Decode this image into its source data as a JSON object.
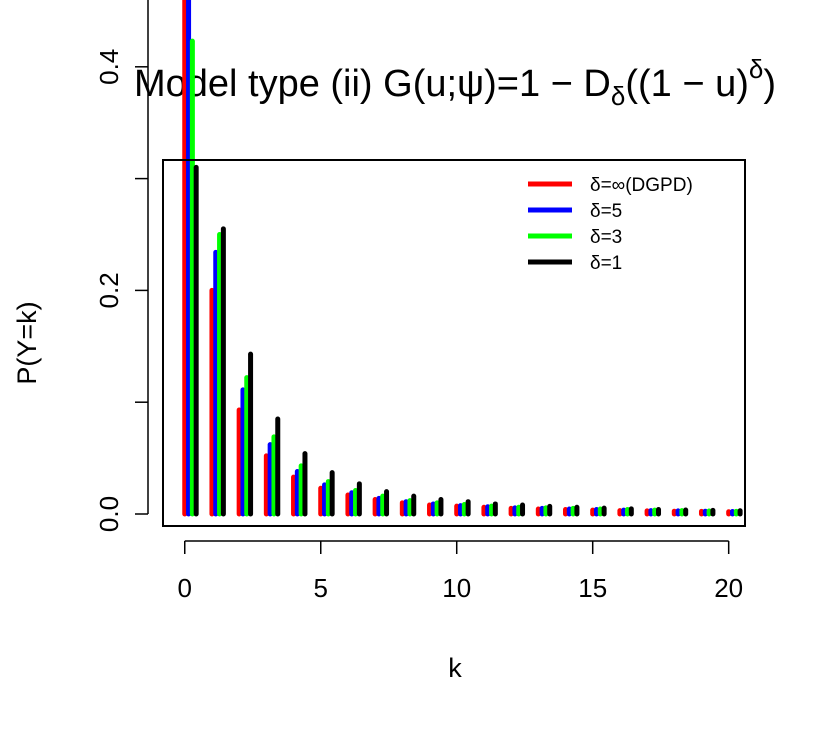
{
  "chart_data": {
    "type": "bar",
    "title": {
      "prefix": "Model type (ii) G(u;ψ)=1 − D",
      "prefix_sub": "δ",
      "middle": "((1 − u)",
      "middle_sup": "δ",
      "suffix": ")"
    },
    "xlabel": "k",
    "ylabel": "P(Y=k)",
    "xlim": [
      -0.8,
      20.6
    ],
    "ylim": [
      0,
      0.56
    ],
    "x_ticks": [
      0,
      5,
      10,
      15,
      20
    ],
    "y_ticks": [
      0.0,
      0.1,
      0.2,
      0.3,
      0.4,
      0.5
    ],
    "y_tick_labels": [
      "0.0",
      "",
      "0.2",
      "",
      "0.4",
      ""
    ],
    "grid": false,
    "legend_position": "top-right",
    "x": [
      0,
      1,
      2,
      3,
      4,
      5,
      6,
      7,
      8,
      9,
      10,
      11,
      12,
      13,
      14,
      15,
      16,
      17,
      18,
      19,
      20
    ],
    "series": [
      {
        "name": "δ=∞(DGPD)",
        "color": "#ff0000",
        "values": [
          0.55,
          0.2,
          0.093,
          0.052,
          0.033,
          0.023,
          0.017,
          0.013,
          0.01,
          0.008,
          0.007,
          0.006,
          0.005,
          0.0045,
          0.004,
          0.0035,
          0.003,
          0.0028,
          0.0025,
          0.0023,
          0.002
        ]
      },
      {
        "name": "δ=5",
        "color": "#0000ff",
        "values": [
          0.468,
          0.234,
          0.111,
          0.062,
          0.038,
          0.026,
          0.019,
          0.014,
          0.011,
          0.009,
          0.0075,
          0.0065,
          0.0055,
          0.005,
          0.0045,
          0.004,
          0.0035,
          0.003,
          0.0028,
          0.0025,
          0.0022
        ]
      },
      {
        "name": "δ=3",
        "color": "#00ff00",
        "values": [
          0.423,
          0.25,
          0.122,
          0.069,
          0.043,
          0.029,
          0.021,
          0.016,
          0.012,
          0.01,
          0.0085,
          0.007,
          0.006,
          0.0055,
          0.005,
          0.0045,
          0.004,
          0.0035,
          0.003,
          0.0027,
          0.0024
        ]
      },
      {
        "name": "δ=1",
        "color": "#000000",
        "values": [
          0.31,
          0.255,
          0.143,
          0.085,
          0.054,
          0.037,
          0.027,
          0.02,
          0.016,
          0.013,
          0.011,
          0.009,
          0.008,
          0.0068,
          0.006,
          0.0052,
          0.0046,
          0.004,
          0.0036,
          0.0032,
          0.0029
        ]
      }
    ]
  }
}
